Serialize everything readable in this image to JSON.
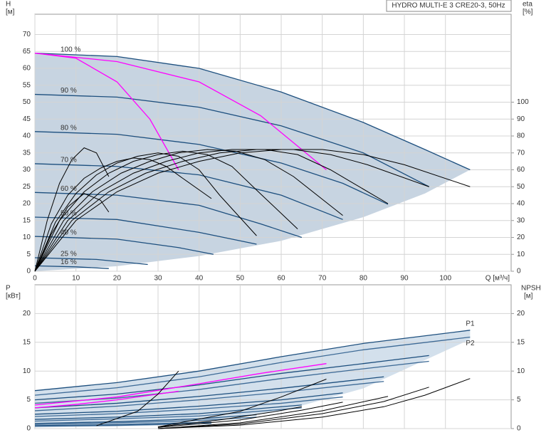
{
  "chart_data": [
    {
      "type": "line",
      "title": "HYDRO MULTI-E 3 CRE20-3, 50Hz",
      "y_label": "H",
      "y_unit": "[м]",
      "y2_label": "eta",
      "y2_unit": "[%]",
      "x_label": "Q [м³/ч]",
      "xlim": [
        0,
        116
      ],
      "xticks": [
        0,
        10,
        20,
        30,
        40,
        50,
        60,
        70,
        80,
        90,
        100
      ],
      "ylim": [
        0,
        76
      ],
      "yticks": [
        0,
        5,
        10,
        15,
        20,
        25,
        30,
        35,
        40,
        45,
        50,
        55,
        60,
        65,
        70
      ],
      "y2lim": [
        0,
        152
      ],
      "y2ticks": [
        0,
        10,
        20,
        30,
        40,
        50,
        60,
        70,
        80,
        90,
        100
      ],
      "grid": true,
      "shade_color": "#c7d4e1",
      "operating_range_lower": {
        "x": [
          0,
          20,
          40,
          60,
          80,
          95,
          106
        ],
        "values": [
          0,
          1.5,
          4.5,
          9,
          16,
          23,
          30
        ]
      },
      "series": [
        {
          "name": "100 %",
          "color": "#1d4f7e",
          "x": [
            0,
            20,
            40,
            60,
            80,
            95,
            106
          ],
          "values": [
            64.5,
            63.5,
            60,
            53,
            44,
            36,
            30
          ]
        },
        {
          "name": "90 %",
          "color": "#1d4f7e",
          "x": [
            0,
            20,
            40,
            60,
            80,
            96
          ],
          "values": [
            52.3,
            51.5,
            48.5,
            43,
            35,
            25
          ]
        },
        {
          "name": "80 %",
          "color": "#1d4f7e",
          "x": [
            0,
            20,
            40,
            60,
            75,
            86
          ],
          "values": [
            41.3,
            40.5,
            37.5,
            32,
            26,
            19.8
          ]
        },
        {
          "name": "70 %",
          "color": "#1d4f7e",
          "x": [
            0,
            20,
            40,
            60,
            75
          ],
          "values": [
            31.8,
            31,
            28.5,
            22.5,
            15.3
          ]
        },
        {
          "name": "60 %",
          "color": "#1d4f7e",
          "x": [
            0,
            20,
            40,
            55,
            65
          ],
          "values": [
            23.3,
            22.5,
            19.5,
            14,
            10
          ]
        },
        {
          "name": "50 %",
          "color": "#1d4f7e",
          "x": [
            0,
            20,
            40,
            54
          ],
          "values": [
            16,
            15.3,
            11.5,
            8
          ]
        },
        {
          "name": "40 %",
          "color": "#1d4f7e",
          "x": [
            0,
            20,
            35,
            43.5
          ],
          "values": [
            10.3,
            9.5,
            7,
            5
          ]
        },
        {
          "name": "25 %",
          "color": "#1d4f7e",
          "x": [
            0,
            15,
            27.5
          ],
          "values": [
            4,
            3.5,
            2
          ]
        },
        {
          "name": "16 %",
          "color": "#1d4f7e",
          "x": [
            0,
            10,
            18
          ],
          "values": [
            1.6,
            1.3,
            0.8
          ]
        },
        {
          "color": "#ff00ff",
          "x": [
            0,
            10,
            20,
            28,
            35
          ],
          "values": [
            64.5,
            63,
            56,
            45,
            30
          ]
        },
        {
          "color": "#ff00ff",
          "x": [
            0,
            20,
            40,
            55,
            63,
            71
          ],
          "values": [
            64.5,
            62,
            56,
            46,
            38,
            30
          ]
        },
        {
          "axis": "y2",
          "color": "#000000",
          "x": [
            0,
            10,
            20,
            30,
            40,
            50,
            60,
            70,
            80,
            90,
            106
          ],
          "values": [
            0,
            30,
            47,
            58,
            65,
            70,
            72,
            72,
            69,
            63,
            50
          ]
        },
        {
          "axis": "y2",
          "color": "#000000",
          "x": [
            0,
            9,
            18,
            27,
            36,
            45,
            54,
            63,
            72,
            81,
            96
          ],
          "values": [
            0,
            30,
            47,
            58,
            65,
            70,
            72,
            72,
            69,
            63,
            50
          ]
        },
        {
          "axis": "y2",
          "color": "#000000",
          "x": [
            0,
            8,
            16,
            24,
            32,
            40,
            48,
            56,
            64,
            72,
            86
          ],
          "values": [
            0,
            30,
            47,
            58,
            65,
            70,
            72,
            72,
            69,
            60,
            40
          ]
        },
        {
          "axis": "y2",
          "color": "#000000",
          "x": [
            0,
            7,
            14,
            21,
            28,
            35,
            42,
            49,
            56,
            63,
            75
          ],
          "values": [
            0,
            30,
            47,
            58,
            65,
            70,
            72,
            71,
            66,
            56,
            33
          ]
        },
        {
          "axis": "y2",
          "color": "#000000",
          "x": [
            0,
            6,
            12,
            18,
            24,
            30,
            36,
            42,
            48,
            54,
            64
          ],
          "values": [
            0,
            30,
            47,
            58,
            65,
            69,
            71,
            69,
            62,
            48,
            25
          ]
        },
        {
          "axis": "y2",
          "color": "#000000",
          "x": [
            0,
            5,
            10,
            15,
            20,
            25,
            30,
            35,
            40,
            45,
            54
          ],
          "values": [
            0,
            29,
            46,
            57,
            64,
            68,
            70,
            68,
            60,
            45,
            21
          ]
        },
        {
          "axis": "y2",
          "color": "#000000",
          "x": [
            0,
            4,
            8,
            12,
            16,
            20,
            24,
            28,
            32,
            36,
            43
          ],
          "values": [
            0,
            28,
            45,
            55,
            61,
            65,
            67,
            66,
            62,
            55,
            43
          ]
        },
        {
          "axis": "y2",
          "color": "#000000",
          "x": [
            0,
            3,
            6,
            9,
            12,
            15,
            18
          ],
          "values": [
            0,
            30,
            52,
            66,
            73,
            70,
            56
          ]
        },
        {
          "axis": "y2",
          "color": "#000000",
          "x": [
            0,
            4,
            8,
            12,
            16,
            18
          ],
          "values": [
            0,
            22,
            38,
            46,
            42,
            35
          ]
        }
      ]
    },
    {
      "type": "line",
      "y_label": "P",
      "y_unit": "[кВт]",
      "y2_label": "NPSH",
      "y2_unit": "[м]",
      "ylim": [
        0,
        25
      ],
      "yticks": [
        0,
        5,
        10,
        15,
        20
      ],
      "y2lim": [
        0,
        25
      ],
      "y2ticks": [
        0,
        5,
        10,
        15,
        20
      ],
      "grid": true,
      "shade_color": "#d3e0ec",
      "operating_range_lower": {
        "x": [
          0,
          30,
          60,
          80,
          106
        ],
        "values": [
          0.2,
          0.5,
          3,
          7,
          15.5
        ]
      },
      "series": [
        {
          "name": "P1",
          "color": "#1d4f7e",
          "x": [
            0,
            20,
            40,
            60,
            80,
            106
          ],
          "values": [
            6.6,
            8,
            10,
            12.5,
            14.8,
            17.1
          ]
        },
        {
          "name": "P2",
          "color": "#3d6a96",
          "x": [
            0,
            20,
            40,
            60,
            80,
            106
          ],
          "values": [
            5.8,
            7.1,
            9,
            11.5,
            13.7,
            15.9
          ]
        },
        {
          "color": "#1d4f7e",
          "x": [
            0,
            20,
            40,
            60,
            80,
            96
          ],
          "values": [
            5,
            6,
            7.6,
            9.6,
            11.3,
            12.7
          ]
        },
        {
          "color": "#3d6a96",
          "x": [
            0,
            20,
            40,
            60,
            80,
            96
          ],
          "values": [
            4.4,
            5.3,
            6.8,
            8.7,
            10.4,
            11.7
          ]
        },
        {
          "color": "#1d4f7e",
          "x": [
            0,
            20,
            40,
            60,
            85
          ],
          "values": [
            3.6,
            4.4,
            5.6,
            7,
            9
          ]
        },
        {
          "color": "#3d6a96",
          "x": [
            0,
            20,
            40,
            60,
            85
          ],
          "values": [
            3.1,
            3.9,
            5,
            6.3,
            8.2
          ]
        },
        {
          "color": "#1d4f7e",
          "x": [
            0,
            20,
            40,
            60,
            75
          ],
          "values": [
            2.5,
            3,
            3.9,
            5,
            6.2
          ]
        },
        {
          "color": "#3d6a96",
          "x": [
            0,
            20,
            40,
            60,
            75
          ],
          "values": [
            2.1,
            2.6,
            3.4,
            4.4,
            5.5
          ]
        },
        {
          "color": "#1d4f7e",
          "x": [
            0,
            20,
            40,
            65
          ],
          "values": [
            1.6,
            2,
            2.6,
            4.1
          ]
        },
        {
          "color": "#3d6a96",
          "x": [
            0,
            20,
            40,
            65
          ],
          "values": [
            1.3,
            1.7,
            2.2,
            3.6
          ]
        },
        {
          "color": "#1d4f7e",
          "x": [
            0,
            20,
            40,
            54
          ],
          "values": [
            0.9,
            1.2,
            1.7,
            2.4
          ]
        },
        {
          "color": "#3d6a96",
          "x": [
            0,
            20,
            40,
            54
          ],
          "values": [
            0.7,
            1,
            1.4,
            2
          ]
        },
        {
          "color": "#1d4f7e",
          "x": [
            0,
            20,
            43
          ],
          "values": [
            0.5,
            0.7,
            1.1
          ]
        },
        {
          "color": "#3d6a96",
          "x": [
            0,
            20,
            43
          ],
          "values": [
            0.4,
            0.55,
            0.9
          ]
        },
        {
          "color": "#ff00ff",
          "x": [
            0,
            20,
            40,
            55,
            71
          ],
          "values": [
            4.1,
            5.5,
            7.8,
            9.6,
            11.3
          ]
        },
        {
          "color": "#ff00ff",
          "x": [
            0,
            10,
            20,
            35
          ],
          "values": [
            3.6,
            4.2,
            5,
            6.5
          ]
        },
        {
          "axis": "y2",
          "color": "#000000",
          "x": [
            30,
            50,
            70,
            85,
            95,
            106
          ],
          "values": [
            0,
            0.6,
            2,
            3.8,
            5.8,
            8.7
          ]
        },
        {
          "axis": "y2",
          "color": "#000000",
          "x": [
            30,
            50,
            70,
            85,
            96
          ],
          "values": [
            0,
            0.8,
            2.6,
            4.7,
            7.2
          ]
        },
        {
          "axis": "y2",
          "color": "#000000",
          "x": [
            30,
            50,
            70,
            86
          ],
          "values": [
            0,
            1,
            3.1,
            5.6
          ]
        },
        {
          "axis": "y2",
          "color": "#000000",
          "x": [
            30,
            50,
            65,
            75
          ],
          "values": [
            0.2,
            1.5,
            3.2,
            4.6
          ]
        },
        {
          "axis": "y2",
          "color": "#000000",
          "x": [
            30,
            45,
            58,
            65
          ],
          "values": [
            0.3,
            1.5,
            2.9,
            3.8
          ]
        },
        {
          "axis": "y2",
          "color": "#000000",
          "x": [
            15,
            25,
            30,
            35
          ],
          "values": [
            0.5,
            3,
            6,
            10
          ]
        },
        {
          "axis": "y2",
          "color": "#000000",
          "x": [
            30,
            50,
            60,
            71
          ],
          "values": [
            0.3,
            3,
            5.5,
            8.6
          ]
        }
      ]
    }
  ]
}
